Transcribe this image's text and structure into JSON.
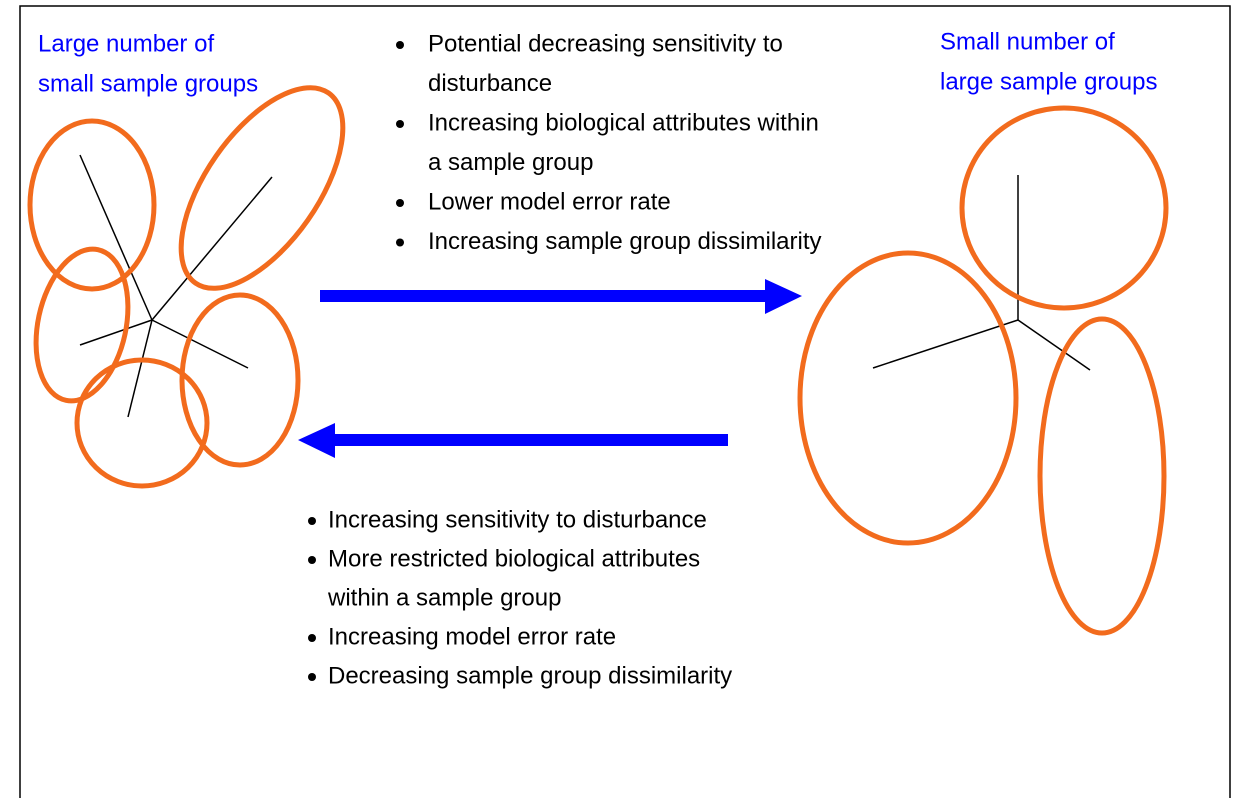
{
  "left_label": [
    "Large number of",
    "small sample groups"
  ],
  "right_label": [
    "Small number of",
    "large sample groups"
  ],
  "top_list": [
    [
      "Potential decreasing sensitivity to",
      "disturbance"
    ],
    [
      "Increasing biological attributes within",
      "a sample group"
    ],
    [
      "Lower model error rate"
    ],
    [
      "Increasing sample group dissimilarity"
    ]
  ],
  "bottom_list": [
    [
      "Increasing sensitivity to disturbance"
    ],
    [
      "More restricted biological attributes",
      "within a sample group"
    ],
    [
      "Increasing model error rate"
    ],
    [
      "Decreasing sample group dissimilarity"
    ]
  ]
}
